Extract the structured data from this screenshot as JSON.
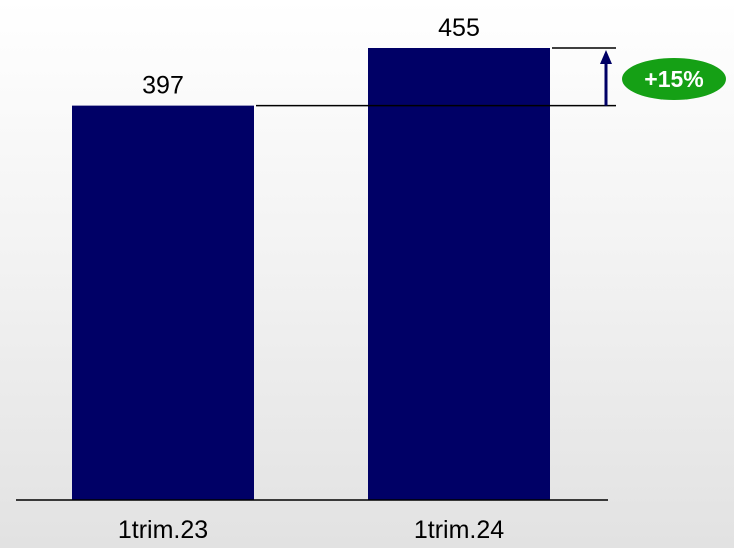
{
  "chart_data": {
    "type": "bar",
    "categories": [
      "1trim.23",
      "1trim.24"
    ],
    "values": [
      397,
      455
    ],
    "data_labels": [
      "397",
      "455"
    ],
    "title": "",
    "xlabel": "",
    "ylabel": "",
    "ylim": [
      0,
      455
    ],
    "grid": false,
    "legend": "none",
    "annotation": {
      "text": "+15%",
      "from_category": "1trim.23",
      "to_category": "1trim.24"
    },
    "colors": {
      "bar": "#000066",
      "badge": "#15a015",
      "axis": "#000000"
    }
  }
}
